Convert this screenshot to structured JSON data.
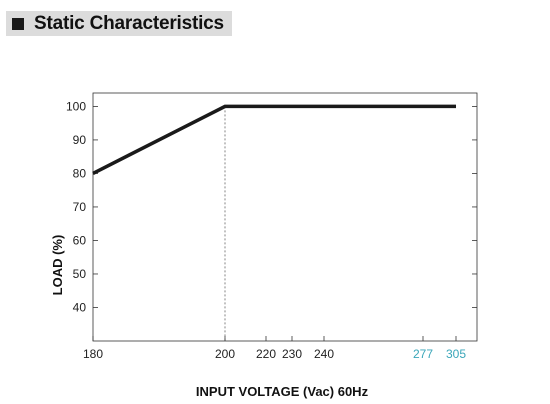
{
  "header": {
    "title": "Static Characteristics",
    "icon": "square-bullet-icon"
  },
  "chart_data": {
    "type": "line",
    "title": "",
    "xlabel": "INPUT VOLTAGE (Vac) 60Hz",
    "ylabel": "LOAD (%)",
    "x_ticks": [
      "180",
      "200",
      "220",
      "230",
      "240",
      "277",
      "305"
    ],
    "x_ticks_highlight": [
      "277",
      "305"
    ],
    "y_ticks": [
      "100",
      "90",
      "80",
      "70",
      "60",
      "50",
      "40"
    ],
    "ylim": [
      30,
      104
    ],
    "series": [
      {
        "x": [
          180,
          200,
          305
        ],
        "y": [
          80,
          100,
          100
        ]
      }
    ],
    "reference_line": {
      "x": 200,
      "style": "dashed"
    },
    "grid": false,
    "colors": {
      "line": "#1a1a1a",
      "highlight_tick": "#3aa6b9",
      "frame": "#333333"
    }
  }
}
